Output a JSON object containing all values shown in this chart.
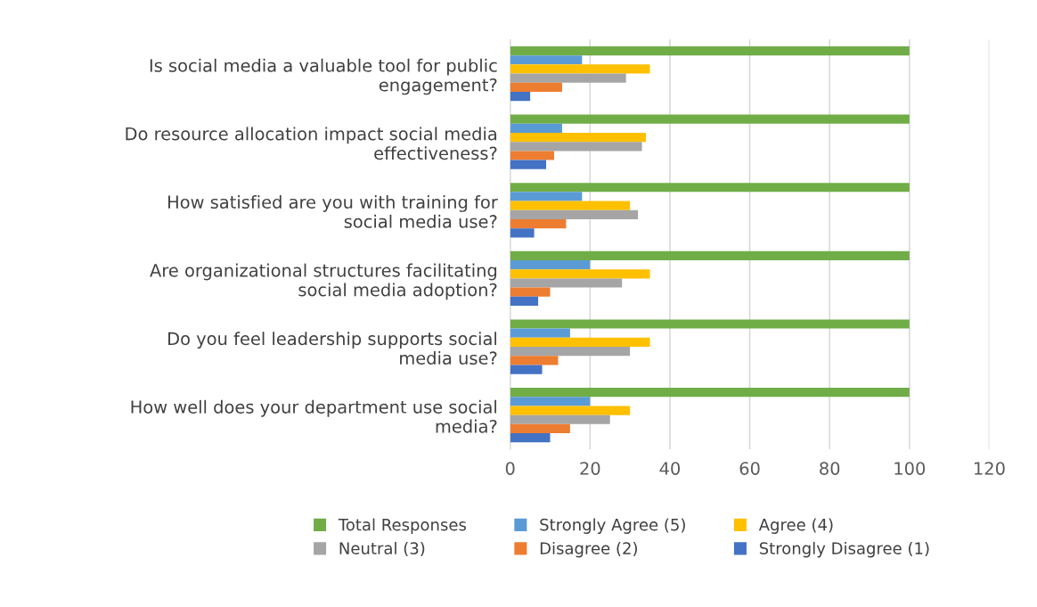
{
  "chart_data": {
    "type": "bar",
    "orientation": "horizontal",
    "categories": [
      "Is social media a valuable tool for public engagement?",
      "Do resource allocation impact social media effectiveness?",
      "How satisfied are you with training for social media use?",
      "Are organizational structures facilitating social media adoption?",
      "Do you feel leadership supports social media use?",
      "How well does your department use social media?"
    ],
    "series": [
      {
        "name": "Total Responses",
        "color": "#70ad47",
        "values": [
          100,
          100,
          100,
          100,
          100,
          100
        ]
      },
      {
        "name": "Strongly Agree (5)",
        "color": "#5b9bd5",
        "values": [
          18,
          13,
          18,
          20,
          15,
          20
        ]
      },
      {
        "name": "Agree (4)",
        "color": "#ffc000",
        "values": [
          35,
          34,
          30,
          35,
          35,
          30
        ]
      },
      {
        "name": "Neutral (3)",
        "color": "#a5a5a5",
        "values": [
          29,
          33,
          32,
          28,
          30,
          25
        ]
      },
      {
        "name": "Disagree (2)",
        "color": "#ed7d31",
        "values": [
          13,
          11,
          14,
          10,
          12,
          15
        ]
      },
      {
        "name": "Strongly Disagree (1)",
        "color": "#4472c4",
        "values": [
          5,
          9,
          6,
          7,
          8,
          10
        ]
      }
    ],
    "xlim": [
      0,
      120
    ],
    "xticks": [
      0,
      20,
      40,
      60,
      80,
      100,
      120
    ],
    "grid": "x",
    "legend": "bottom"
  }
}
